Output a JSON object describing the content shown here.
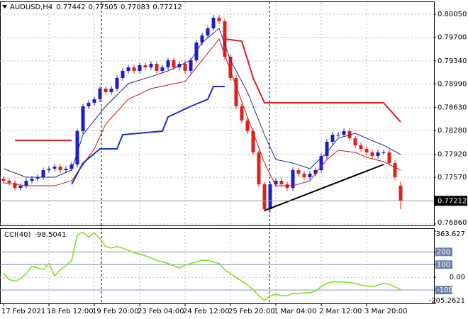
{
  "chart_data": [
    {
      "type": "candlestick",
      "title": "AUDUSD,H4",
      "open": [
        0.7755,
        0.77517,
        0.77484,
        0.77409,
        0.77441,
        0.77517,
        0.77549,
        0.77571,
        0.77678,
        0.777,
        0.77732,
        0.77678,
        0.777,
        0.77765,
        0.78271,
        0.78649,
        0.78702,
        0.78756,
        0.78918,
        0.78864,
        0.78918,
        0.7908,
        0.79188,
        0.79241,
        0.79188,
        0.79274,
        0.79241,
        0.79295,
        0.79188,
        0.79241,
        0.79349,
        0.79241,
        0.79295,
        0.79188,
        0.79349,
        0.79619,
        0.79727,
        0.79834,
        0.79996,
        0.79942,
        0.79403,
        0.7908,
        0.78649,
        0.78433,
        0.78271,
        0.77948,
        0.77463,
        0.77085,
        0.77463,
        0.77517,
        0.77463,
        0.77409,
        0.77678,
        0.77624,
        0.77571,
        0.77624,
        0.77678,
        0.77894,
        0.7811,
        0.78217,
        0.78217,
        0.78271,
        0.78163,
        0.78056,
        0.78002,
        0.77948,
        0.77894,
        0.77948,
        0.77948,
        0.77786,
        0.77442
      ],
      "high": [
        0.7759,
        0.77557,
        0.77524,
        0.77481,
        0.77557,
        0.77589,
        0.77611,
        0.77718,
        0.7774,
        0.77772,
        0.77772,
        0.7774,
        0.77805,
        0.78311,
        0.78689,
        0.78742,
        0.78796,
        0.78958,
        0.78958,
        0.78958,
        0.7912,
        0.79228,
        0.79281,
        0.79281,
        0.79314,
        0.79314,
        0.79335,
        0.79335,
        0.79281,
        0.79389,
        0.79389,
        0.79335,
        0.79335,
        0.79389,
        0.79659,
        0.79767,
        0.79874,
        0.80036,
        0.80036,
        0.79982,
        0.79443,
        0.7912,
        0.78689,
        0.78473,
        0.78311,
        0.77988,
        0.77503,
        0.77503,
        0.77557,
        0.77557,
        0.77503,
        0.77718,
        0.77718,
        0.77664,
        0.77664,
        0.77718,
        0.77934,
        0.7815,
        0.78257,
        0.78257,
        0.78311,
        0.78311,
        0.78203,
        0.78096,
        0.78042,
        0.77988,
        0.77988,
        0.77988,
        0.77988,
        0.77826,
        0.77505
      ],
      "low": [
        0.77477,
        0.77444,
        0.77369,
        0.77369,
        0.77401,
        0.77477,
        0.77509,
        0.77531,
        0.77638,
        0.7766,
        0.77638,
        0.77638,
        0.7766,
        0.77725,
        0.78231,
        0.78609,
        0.78662,
        0.78716,
        0.78824,
        0.78824,
        0.78878,
        0.7904,
        0.79148,
        0.79148,
        0.79148,
        0.79201,
        0.79201,
        0.79148,
        0.79148,
        0.79201,
        0.79201,
        0.79201,
        0.79148,
        0.79148,
        0.79309,
        0.79579,
        0.79687,
        0.79794,
        0.79902,
        0.79363,
        0.7904,
        0.78609,
        0.78393,
        0.78231,
        0.77908,
        0.77423,
        0.77045,
        0.77045,
        0.77423,
        0.77423,
        0.77369,
        0.77369,
        0.77584,
        0.77531,
        0.77531,
        0.77584,
        0.77638,
        0.77854,
        0.7807,
        0.78177,
        0.78177,
        0.78123,
        0.78016,
        0.77962,
        0.77908,
        0.77854,
        0.77854,
        0.77908,
        0.77746,
        0.77531,
        0.77083
      ],
      "close": [
        0.77517,
        0.77484,
        0.77409,
        0.77441,
        0.77517,
        0.77549,
        0.77571,
        0.77678,
        0.777,
        0.77732,
        0.77678,
        0.777,
        0.77765,
        0.78271,
        0.78649,
        0.78702,
        0.78756,
        0.78918,
        0.78864,
        0.78918,
        0.7908,
        0.79188,
        0.79241,
        0.79188,
        0.79274,
        0.79241,
        0.79295,
        0.79188,
        0.79241,
        0.79349,
        0.79241,
        0.79295,
        0.79188,
        0.79349,
        0.79619,
        0.79727,
        0.79834,
        0.79996,
        0.79942,
        0.79403,
        0.7908,
        0.78649,
        0.78433,
        0.78271,
        0.77948,
        0.77463,
        0.77085,
        0.77463,
        0.77517,
        0.77463,
        0.77409,
        0.77678,
        0.77624,
        0.77571,
        0.77624,
        0.77678,
        0.77894,
        0.7811,
        0.78217,
        0.78217,
        0.78271,
        0.78163,
        0.78056,
        0.78002,
        0.77948,
        0.77894,
        0.77948,
        0.77948,
        0.77786,
        0.77571,
        0.77212
      ],
      "up_color": "#1d1dc8",
      "down_color": "#e0201c",
      "ylim": [
        0.76838,
        0.80244
      ],
      "yticks": [
        {
          "value": 0.8005,
          "label": "0.80050"
        },
        {
          "value": 0.797,
          "label": "0.79700"
        },
        {
          "value": 0.7934,
          "label": "0.79340"
        },
        {
          "value": 0.7899,
          "label": "0.78990"
        },
        {
          "value": 0.7863,
          "label": "0.78630"
        },
        {
          "value": 0.7828,
          "label": "0.78280"
        },
        {
          "value": 0.7792,
          "label": "0.77920"
        },
        {
          "value": 0.7757,
          "label": "0.77570"
        },
        {
          "value": 0.7686,
          "label": "0.76860"
        }
      ],
      "xticks": [
        {
          "value": 0,
          "label": "17 Feb 2021"
        },
        {
          "value": 8,
          "label": "18 Feb 12:00"
        },
        {
          "value": 16,
          "label": "19 Feb 20:00"
        },
        {
          "value": 24,
          "label": "23 Feb 04:00"
        },
        {
          "value": 32,
          "label": "24 Feb 12:00"
        },
        {
          "value": 40,
          "label": "25 Feb 20:00"
        },
        {
          "value": 48,
          "label": "1 Mar 04:00"
        },
        {
          "value": 56,
          "label": "2 Mar 12:00"
        },
        {
          "value": 64,
          "label": "3 Mar 20:00"
        }
      ],
      "grid": true,
      "lines": [
        {
          "color": "#1c2a8c",
          "width": 1,
          "x": [
            0,
            4,
            9,
            12,
            14,
            18,
            22,
            26,
            29,
            33,
            35,
            38,
            40,
            43,
            46,
            48,
            51,
            54,
            57,
            59,
            62,
            64,
            67,
            70
          ],
          "values": [
            0.777,
            0.77571,
            0.77571,
            0.77678,
            0.78217,
            0.78649,
            0.78994,
            0.79101,
            0.79188,
            0.79349,
            0.79619,
            0.79834,
            0.79349,
            0.78864,
            0.78217,
            0.7784,
            0.77786,
            0.777,
            0.77948,
            0.78163,
            0.78239,
            0.78163,
            0.78056,
            0.77916
          ]
        },
        {
          "color": "#cc1414",
          "width": 1,
          "x": [
            0,
            4,
            9,
            12,
            16,
            18,
            22,
            26,
            29,
            32,
            35,
            38,
            40,
            43,
            46,
            48,
            51,
            54,
            57,
            59,
            62,
            64,
            67,
            70
          ],
          "values": [
            0.77484,
            0.77441,
            0.77441,
            0.77517,
            0.78002,
            0.78379,
            0.78756,
            0.78918,
            0.78972,
            0.79026,
            0.79349,
            0.79673,
            0.79188,
            0.78487,
            0.77786,
            0.77441,
            0.77441,
            0.77517,
            0.7784,
            0.7798,
            0.77948,
            0.77872,
            0.77808,
            0.77678
          ]
        },
        {
          "color": "#e01c1c",
          "width": 2,
          "x": [
            2,
            12,
            25,
            39,
            42,
            44,
            46,
            67,
            70
          ],
          "values": [
            0.78132,
            0.78132,
            null,
            0.79673,
            0.7964,
            0.7908,
            0.78703,
            0.78703,
            0.78411
          ]
        },
        {
          "color": "#1b2fc8",
          "width": 2,
          "x": [
            12,
            14,
            17,
            20,
            21,
            28,
            29,
            33,
            36,
            37,
            39
          ],
          "values": [
            0.77463,
            0.77786,
            0.78002,
            0.78002,
            0.78217,
            0.78271,
            0.78487,
            0.78649,
            0.78756,
            0.7895,
            0.7895
          ]
        },
        {
          "color": "#000000",
          "width": 2,
          "x": [
            46,
            67
          ],
          "values": [
            0.77064,
            0.77765
          ]
        }
      ]
    },
    {
      "type": "line",
      "title": "CCI(40)",
      "color": "#80e020",
      "values": [
        30,
        -18,
        -30,
        -12,
        30,
        85,
        73,
        61,
        109,
        12,
        61,
        91,
        133,
        333,
        355,
        315,
        350,
        303,
        242,
        230,
        242,
        230,
        212,
        194,
        182,
        169,
        151,
        133,
        121,
        109,
        91,
        73,
        97,
        109,
        121,
        133,
        133,
        121,
        109,
        61,
        30,
        0,
        -30,
        -61,
        -97,
        -145,
        -182,
        -145,
        -133,
        -145,
        -145,
        -127,
        -127,
        -121,
        -121,
        -109,
        -73,
        -48,
        -36,
        -36,
        -36,
        -42,
        -48,
        -61,
        -67,
        -73,
        -61,
        -48,
        -54,
        -73,
        -98.5041
      ],
      "ylim": [
        -205.2621,
        363.627
      ],
      "yticks": [
        363.627,
        200,
        100,
        {
          "value": 0,
          "label": "0.00"
        },
        -100,
        -205.2621
      ],
      "levels": [
        200,
        100,
        -100
      ]
    }
  ]
}
